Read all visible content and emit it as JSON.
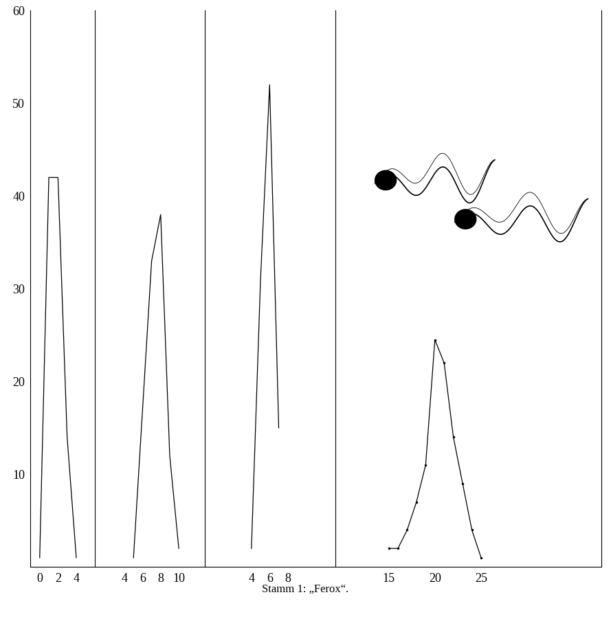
{
  "title": "Stamm 1: „Ferox“.",
  "chart_data": [
    {
      "type": "line",
      "color": "#000000",
      "x": [
        0,
        1,
        2,
        3,
        4
      ],
      "values": [
        1,
        42,
        42,
        14,
        1
      ],
      "xlim": [
        -1,
        6
      ],
      "xticks": [
        0,
        2,
        4
      ],
      "ylim": [
        0,
        60
      ],
      "yticks": [
        10,
        20,
        30,
        40,
        50,
        60
      ],
      "tick_labels": true,
      "grid": false
    },
    {
      "type": "line",
      "color": "#000000",
      "x": [
        5,
        7,
        8,
        9,
        10
      ],
      "values": [
        1,
        33,
        38,
        12,
        2
      ],
      "xlim": [
        0.7,
        12.9
      ],
      "xticks": [
        4,
        6,
        8,
        10
      ],
      "ylim": [
        0,
        60
      ],
      "tick_labels": "x",
      "grid": false
    },
    {
      "type": "line",
      "color": "#000000",
      "x": [
        4,
        5,
        6,
        7
      ],
      "values": [
        2,
        31,
        52,
        15
      ],
      "xlim": [
        -1.1,
        13.2
      ],
      "xticks": [
        4,
        6,
        8
      ],
      "ylim": [
        0,
        60
      ],
      "tick_labels": "x",
      "grid": false
    },
    {
      "type": "line",
      "color": "#000000",
      "marker": "dot",
      "x": [
        15,
        16,
        17,
        18,
        19,
        20,
        21,
        22,
        23,
        24,
        25
      ],
      "values": [
        2,
        2,
        4,
        7,
        11,
        24.5,
        22,
        14,
        9,
        4,
        1
      ],
      "xlim": [
        9.2,
        38
      ],
      "xticks": [
        15,
        20,
        25
      ],
      "ylim": [
        0,
        60
      ],
      "tick_labels": "x",
      "grid": false
    }
  ]
}
